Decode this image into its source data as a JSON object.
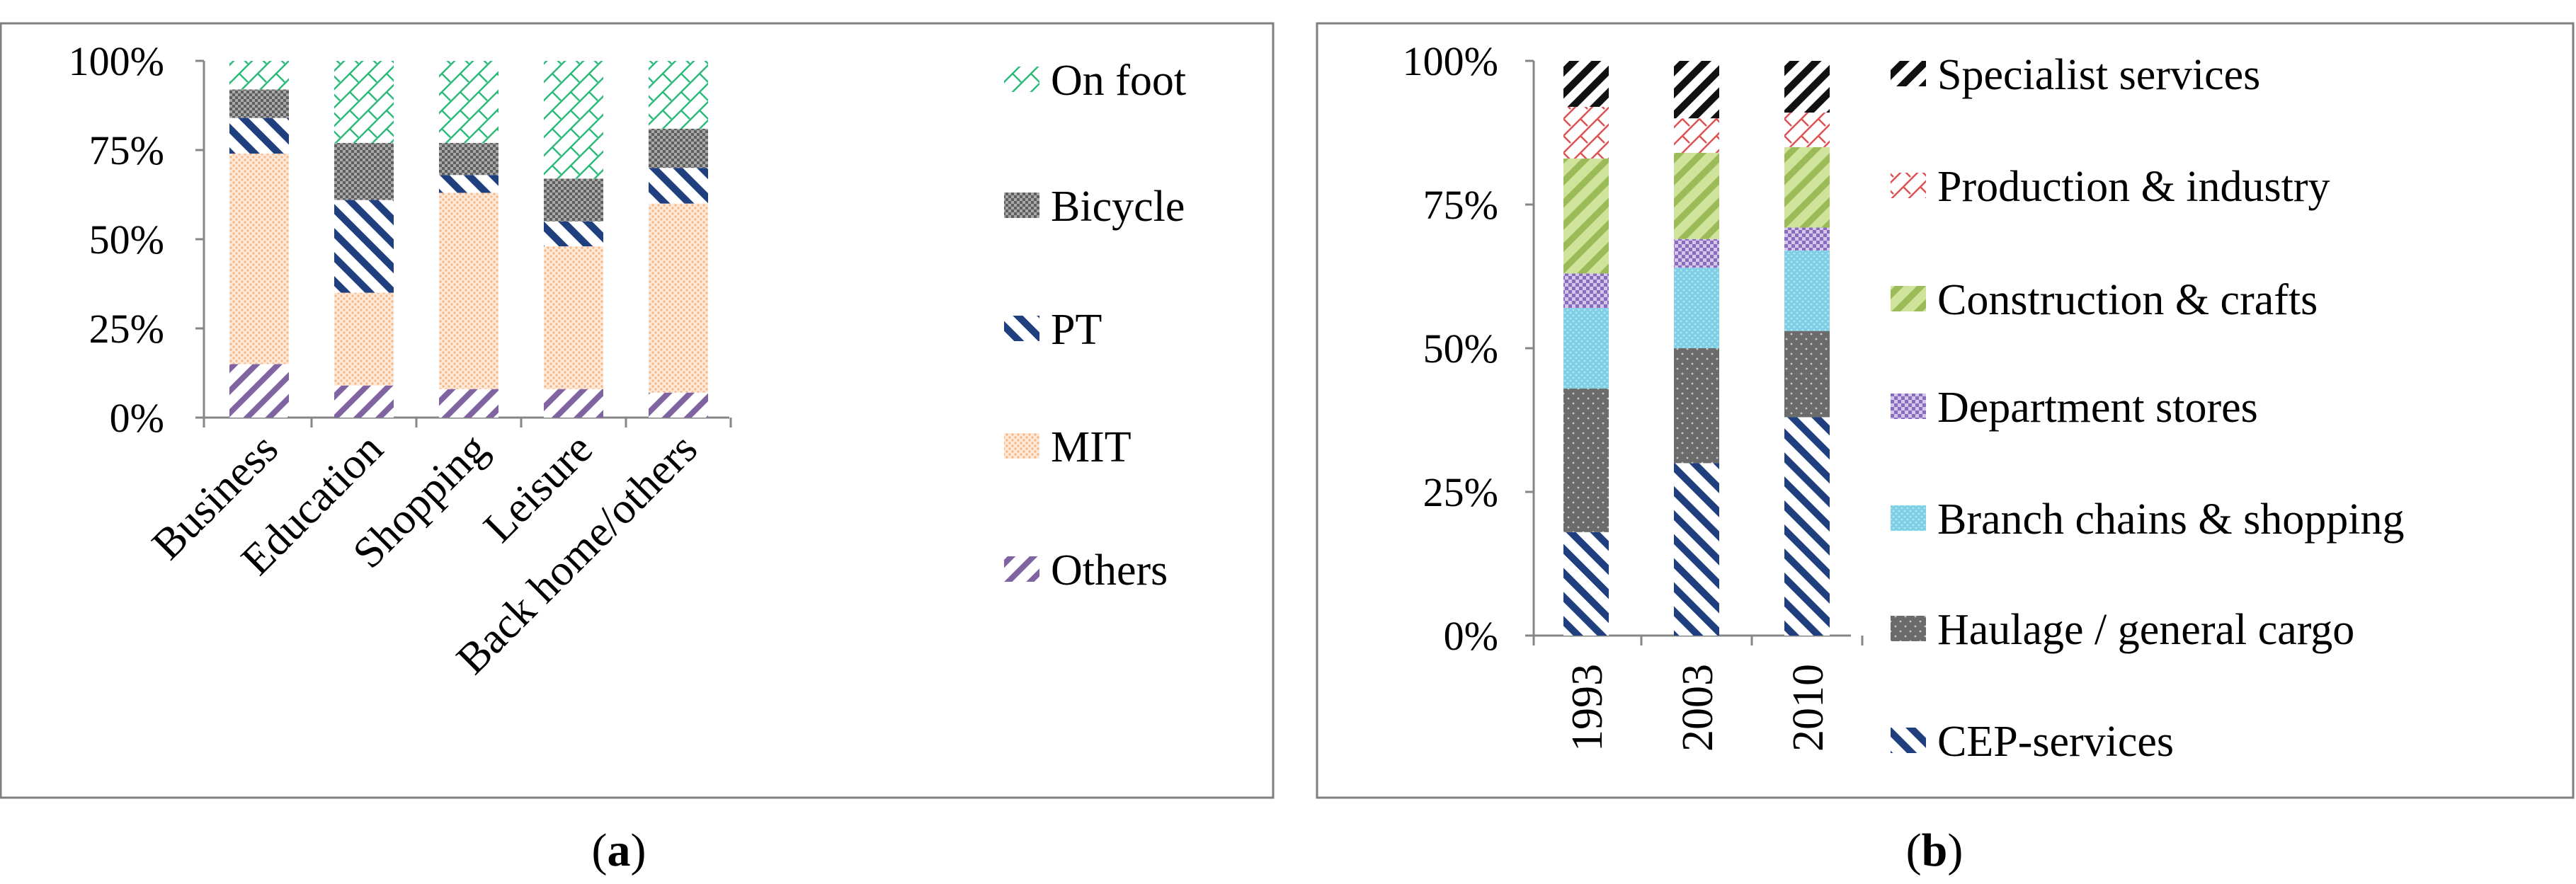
{
  "chart_data": [
    {
      "type": "bar",
      "stacked": true,
      "panel_label": "(a)",
      "categories": [
        "Business",
        "Education",
        "Shopping",
        "Leisure",
        "Back home/others"
      ],
      "yticks": [
        "0%",
        "25%",
        "50%",
        "75%",
        "100%"
      ],
      "ylim": [
        0,
        100
      ],
      "legend_position": "right",
      "series": [
        {
          "name": "Others",
          "pattern": "pat-others",
          "values": [
            15,
            9,
            8,
            8,
            7
          ]
        },
        {
          "name": "MIT",
          "pattern": "pat-mit",
          "values": [
            59,
            26,
            55,
            40,
            53
          ]
        },
        {
          "name": "PT",
          "pattern": "pat-pt",
          "values": [
            10,
            26,
            5,
            7,
            10
          ]
        },
        {
          "name": "Bicycle",
          "pattern": "pat-bicycle",
          "values": [
            8,
            16,
            9,
            12,
            11
          ]
        },
        {
          "name": "On foot",
          "pattern": "pat-onfoot",
          "values": [
            8,
            23,
            23,
            33,
            19
          ]
        }
      ]
    },
    {
      "type": "bar",
      "stacked": true,
      "panel_label": "(b)",
      "categories": [
        "1993",
        "2003",
        "2010"
      ],
      "yticks": [
        "0%",
        "25%",
        "50%",
        "75%",
        "100%"
      ],
      "ylim": [
        0,
        100
      ],
      "legend_position": "right",
      "series": [
        {
          "name": "CEP-services",
          "pattern": "pat-cep",
          "values": [
            18,
            30,
            38
          ]
        },
        {
          "name": "Haulage / general cargo",
          "pattern": "pat-haulage",
          "values": [
            25,
            20,
            15
          ]
        },
        {
          "name": "Branch chains & shopping",
          "pattern": "pat-branch",
          "values": [
            14,
            14,
            14
          ]
        },
        {
          "name": "Department stores",
          "pattern": "pat-dept",
          "values": [
            6,
            5,
            4
          ]
        },
        {
          "name": "Construction & crafts",
          "pattern": "pat-construct",
          "values": [
            20,
            15,
            14
          ]
        },
        {
          "name": "Production & industry",
          "pattern": "pat-prod",
          "values": [
            9,
            6,
            6
          ]
        },
        {
          "name": "Specialist services",
          "pattern": "pat-special",
          "values": [
            8,
            10,
            9
          ]
        }
      ]
    }
  ]
}
